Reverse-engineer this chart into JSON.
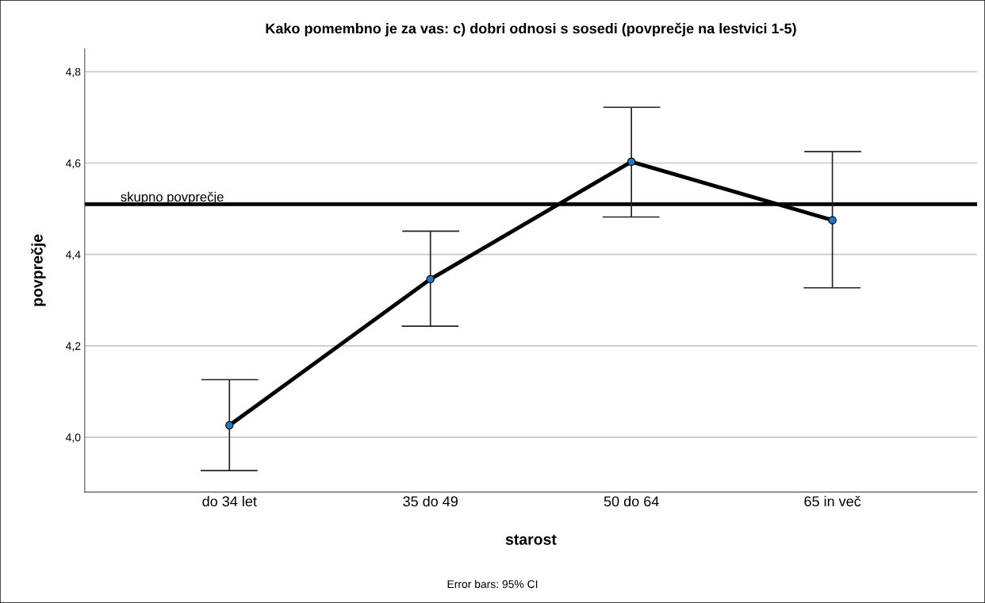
{
  "chart_data": {
    "type": "line",
    "title": "Kako pomembno je za vas: c) dobri odnosi s sosedi (povprečje na lestvici 1-5)",
    "xlabel": "starost",
    "ylabel": "povprečje",
    "categories": [
      "do 34 let",
      "35 do 49",
      "50 do 64",
      "65 in več"
    ],
    "series": [
      {
        "color": "#000000",
        "colors": [
          "#1f78c8",
          "#1f78c8",
          "#1f78c8",
          "#1f78c8"
        ],
        "values": [
          4.026,
          4.346,
          4.603,
          4.475
        ],
        "errors": [
          [
            3.927,
            4.126
          ],
          [
            4.243,
            4.451
          ],
          [
            4.482,
            4.722
          ],
          [
            4.327,
            4.625
          ]
        ]
      }
    ],
    "ylim": [
      3.88,
      4.85
    ],
    "yticks": [
      {
        "value": 4.0,
        "label": "4,0"
      },
      {
        "value": 4.2,
        "label": "4,2"
      },
      {
        "value": 4.4,
        "label": "4,4"
      },
      {
        "value": 4.6,
        "label": "4,6"
      },
      {
        "value": 4.8,
        "label": "4,8"
      }
    ],
    "ref_lines": [
      {
        "axis": "y",
        "value": 4.51,
        "label": "skupno povprečje",
        "color": "#000000"
      }
    ],
    "grid": "y",
    "marker": "circle",
    "line_style": "solid",
    "annotations": [
      "Error bars: 95% CI"
    ]
  }
}
